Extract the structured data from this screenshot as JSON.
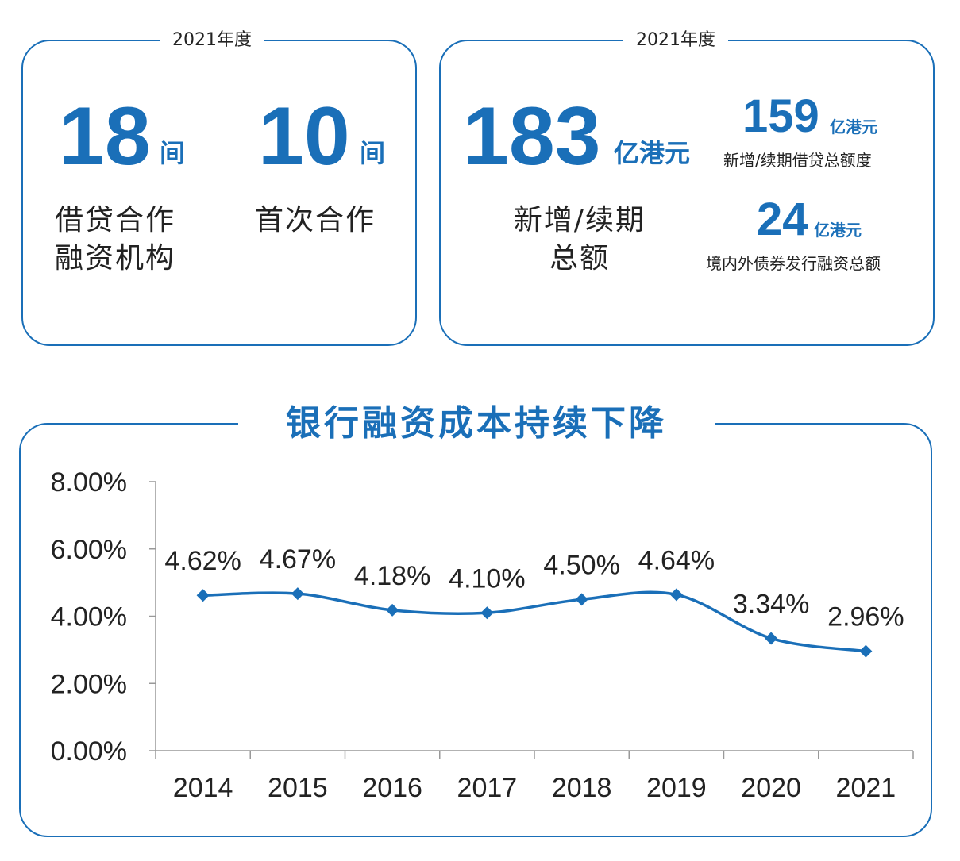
{
  "left_card": {
    "legend": "2021年度",
    "stat1": {
      "value": "18",
      "unit": "间",
      "caption_line1": "借贷合作",
      "caption_line2": "融资机构"
    },
    "stat2": {
      "value": "10",
      "unit": "间",
      "caption_line1": "首次合作"
    }
  },
  "right_card": {
    "legend": "2021年度",
    "main": {
      "value": "183",
      "unit": "亿港元",
      "caption_line1": "新增/续期",
      "caption_line2": "总额"
    },
    "sub1": {
      "value": "159",
      "unit": "亿港元",
      "caption": "新增/续期借贷总额度"
    },
    "sub2": {
      "value": "24",
      "unit": "亿港元",
      "caption": "境内外债券发行融资总额"
    }
  },
  "colors": {
    "accent": "#1a6fb8",
    "axis": "#999999",
    "text": "#222222"
  },
  "chart_data": {
    "type": "line",
    "title": "银行融资成本持续下降",
    "categories": [
      "2014",
      "2015",
      "2016",
      "2017",
      "2018",
      "2019",
      "2020",
      "2021"
    ],
    "values": [
      4.62,
      4.67,
      4.18,
      4.1,
      4.5,
      4.64,
      3.34,
      2.96
    ],
    "data_labels": [
      "4.62%",
      "4.67%",
      "4.18%",
      "4.10%",
      "4.50%",
      "4.64%",
      "3.34%",
      "2.96%"
    ],
    "y_ticks": [
      0,
      2,
      4,
      6,
      8
    ],
    "y_tick_labels": [
      "0.00%",
      "2.00%",
      "4.00%",
      "6.00%",
      "8.00%"
    ],
    "ylim": [
      0,
      8
    ],
    "xlabel": "",
    "ylabel": "",
    "grid": false,
    "marker": "diamond"
  }
}
